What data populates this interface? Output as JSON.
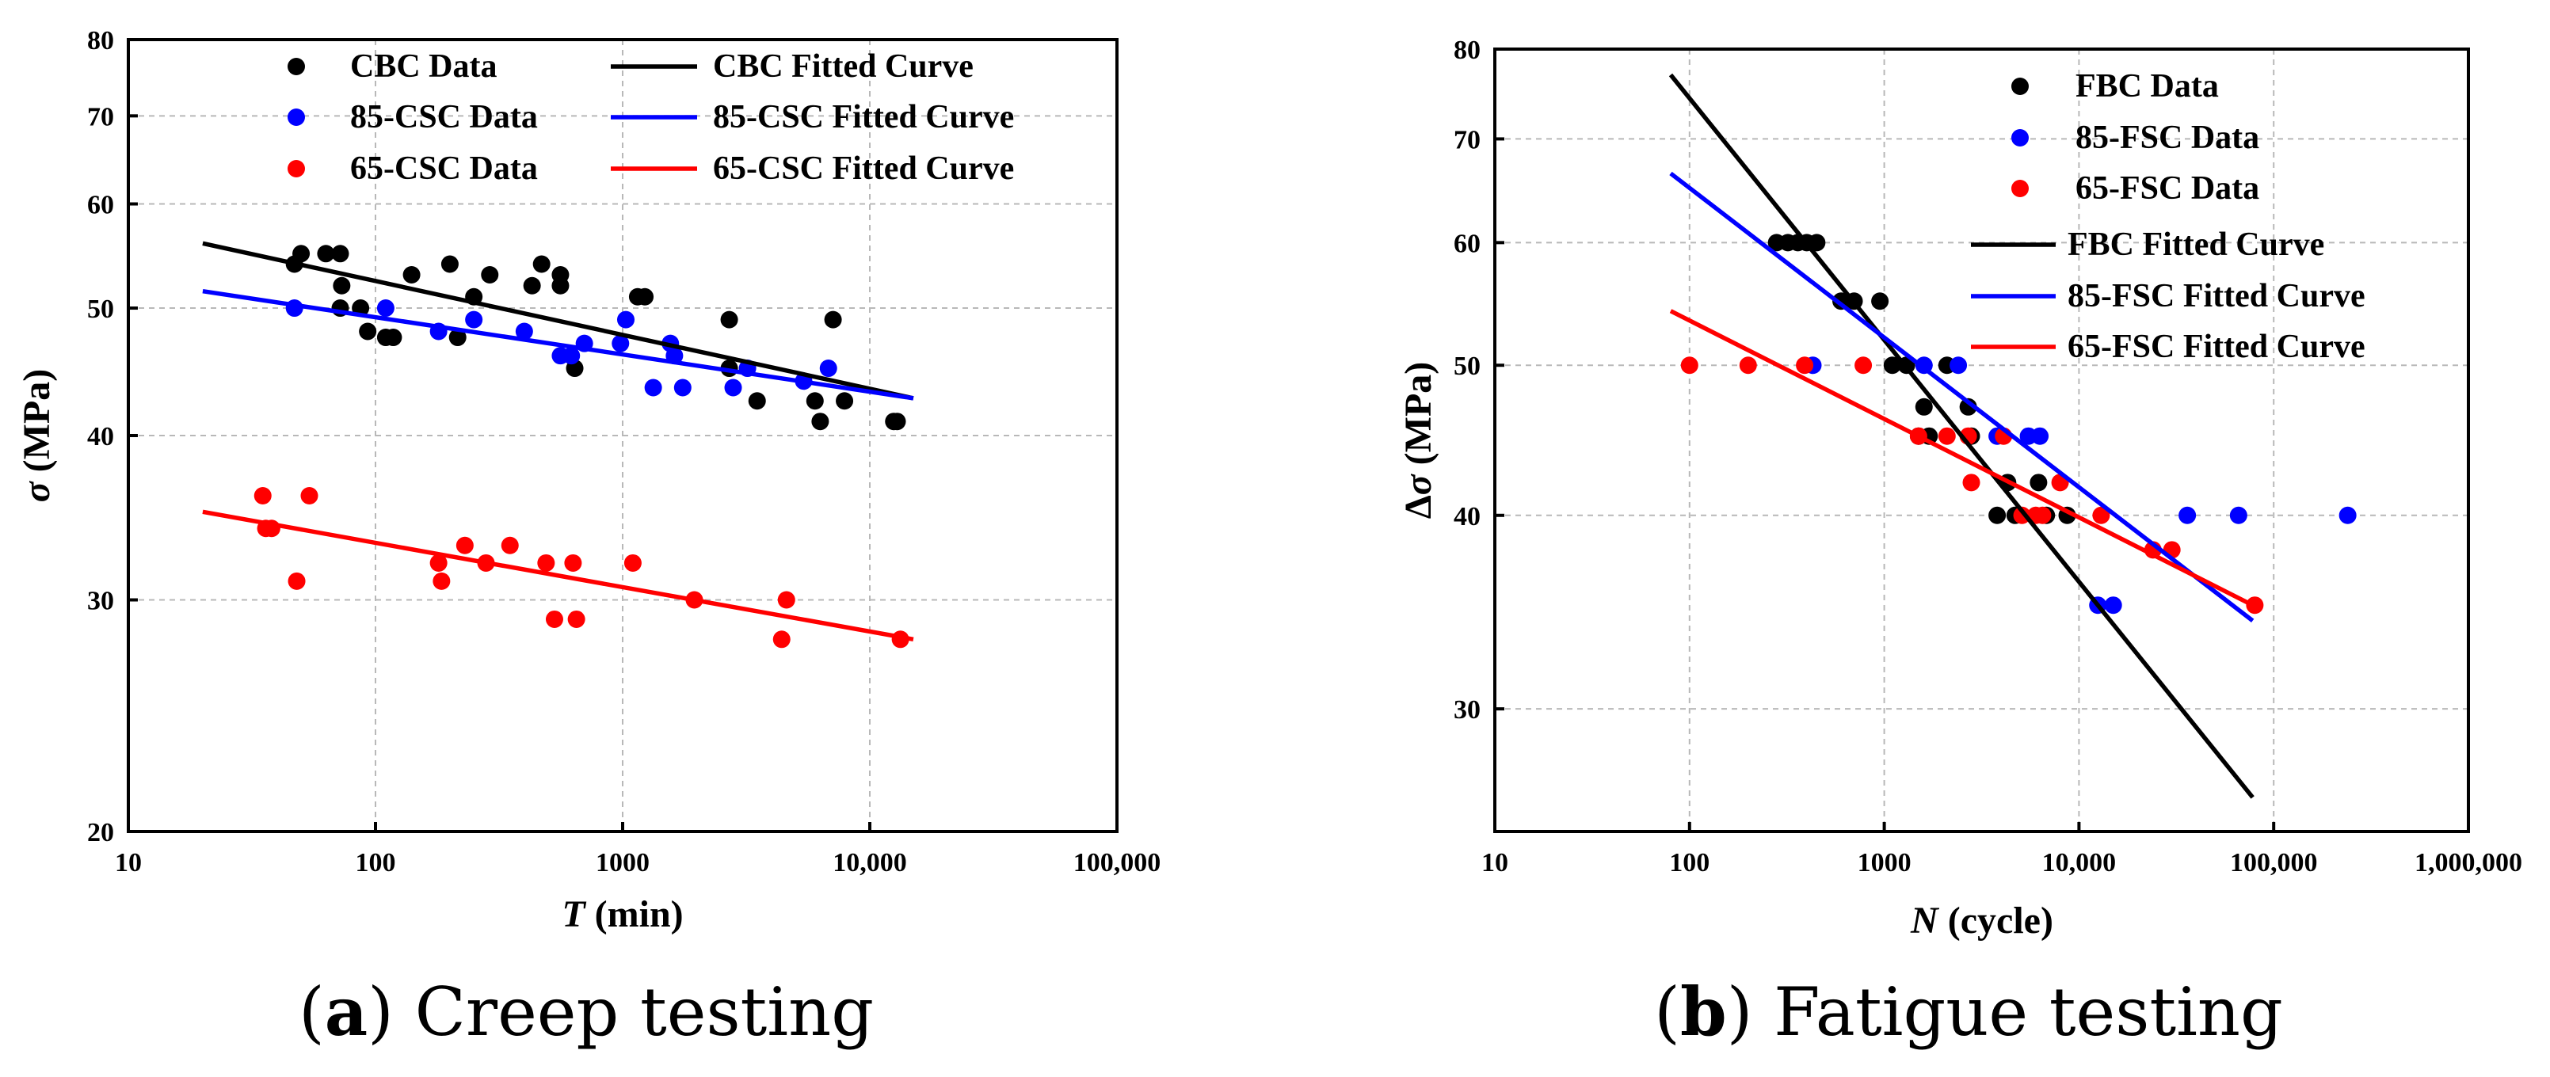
{
  "chart_data": [
    {
      "type": "scatter",
      "panel_label": "a",
      "caption": "Creep testing",
      "xlabel_italic": "T",
      "xlabel_rest": " (min)",
      "ylabel_italic": "σ",
      "ylabel_rest": " (MPa)",
      "x_scale": "log",
      "y_scale": "log",
      "xlim": [
        10,
        100000
      ],
      "ylim": [
        20,
        80
      ],
      "xticks": [
        10,
        100,
        1000,
        10000,
        100000
      ],
      "xtick_labels": [
        "10",
        "100",
        "1000",
        "10,000",
        "100,000"
      ],
      "yticks": [
        20,
        30,
        40,
        50,
        60,
        70,
        80
      ],
      "ytick_labels": [
        "20",
        "30",
        "40",
        "50",
        "60",
        "70",
        "80"
      ],
      "grid": true,
      "legend": [
        {
          "label": "CBC Data",
          "kind": "marker",
          "color": "#000000"
        },
        {
          "label": "85-CSC Data",
          "kind": "marker",
          "color": "#0000ff"
        },
        {
          "label": "65-CSC Data",
          "kind": "marker",
          "color": "#ff0000"
        },
        {
          "label": "CBC Fitted Curve",
          "kind": "line",
          "color": "#000000"
        },
        {
          "label": "85-CSC Fitted Curve",
          "kind": "line",
          "color": "#0000ff"
        },
        {
          "label": "65-CSC Fitted Curve",
          "kind": "line",
          "color": "#ff0000"
        }
      ],
      "series": [
        {
          "name": "CBC Data",
          "color": "#000000",
          "points": [
            [
              47,
              54
            ],
            [
              50,
              55
            ],
            [
              63,
              55
            ],
            [
              72,
              55
            ],
            [
              73,
              52
            ],
            [
              72,
              50
            ],
            [
              87,
              50
            ],
            [
              93,
              48
            ],
            [
              110,
              47.5
            ],
            [
              118,
              47.5
            ],
            [
              140,
              53
            ],
            [
              200,
              54
            ],
            [
              215,
              47.5
            ],
            [
              250,
              51
            ],
            [
              290,
              53
            ],
            [
              430,
              52
            ],
            [
              470,
              54
            ],
            [
              560,
              53
            ],
            [
              560,
              52
            ],
            [
              640,
              45
            ],
            [
              1150,
              51
            ],
            [
              1230,
              51
            ],
            [
              2700,
              49
            ],
            [
              2700,
              45
            ],
            [
              3500,
              42.5
            ],
            [
              6000,
              42.5
            ],
            [
              6300,
              41
            ],
            [
              7100,
              49
            ],
            [
              7900,
              42.5
            ],
            [
              12500,
              41
            ],
            [
              12900,
              41
            ]
          ]
        },
        {
          "name": "85-CSC Data",
          "color": "#0000ff",
          "points": [
            [
              47,
              50
            ],
            [
              110,
              50
            ],
            [
              180,
              48
            ],
            [
              250,
              49
            ],
            [
              400,
              48
            ],
            [
              560,
              46
            ],
            [
              620,
              46
            ],
            [
              700,
              47
            ],
            [
              980,
              47
            ],
            [
              1030,
              49
            ],
            [
              1330,
              43.5
            ],
            [
              1560,
              47
            ],
            [
              1620,
              46
            ],
            [
              1750,
              43.5
            ],
            [
              2800,
              43.5
            ],
            [
              3200,
              45
            ],
            [
              5400,
              44
            ],
            [
              6800,
              45
            ]
          ]
        },
        {
          "name": "65-CSC Data",
          "color": "#ff0000",
          "points": [
            [
              35,
              36
            ],
            [
              36,
              34
            ],
            [
              38,
              34
            ],
            [
              48,
              31
            ],
            [
              54,
              36
            ],
            [
              180,
              32
            ],
            [
              185,
              31
            ],
            [
              230,
              33
            ],
            [
              280,
              32
            ],
            [
              350,
              33
            ],
            [
              490,
              32
            ],
            [
              530,
              29
            ],
            [
              630,
              32
            ],
            [
              650,
              29
            ],
            [
              1100,
              32
            ],
            [
              1950,
              30
            ],
            [
              4400,
              28
            ],
            [
              4600,
              30
            ],
            [
              13300,
              28
            ]
          ]
        }
      ],
      "fitted_curves": [
        {
          "name": "CBC Fitted Curve",
          "color": "#000000",
          "from": [
            20,
            56
          ],
          "to": [
            15000,
            42.7
          ]
        },
        {
          "name": "85-CSC Fitted Curve",
          "color": "#0000ff",
          "from": [
            20,
            51.5
          ],
          "to": [
            15000,
            42.7
          ]
        },
        {
          "name": "65-CSC Fitted Curve",
          "color": "#ff0000",
          "from": [
            20,
            35
          ],
          "to": [
            15000,
            28
          ]
        }
      ]
    },
    {
      "type": "scatter",
      "panel_label": "b",
      "caption": "Fatigue testing",
      "xlabel_italic": "N",
      "xlabel_rest": " (cycle)",
      "ylabel_prefix": "Δ",
      "ylabel_italic": "σ",
      "ylabel_rest": " (MPa)",
      "x_scale": "log",
      "y_scale": "log",
      "xlim": [
        10,
        1000000
      ],
      "ylim": [
        25,
        80
      ],
      "xticks": [
        10,
        100,
        1000,
        10000,
        100000,
        1000000
      ],
      "xtick_labels": [
        "10",
        "100",
        "1000",
        "10,000",
        "100,000",
        "1,000,000"
      ],
      "yticks": [
        30,
        40,
        50,
        60,
        70,
        80
      ],
      "ytick_labels": [
        "30",
        "40",
        "50",
        "60",
        "70",
        "80"
      ],
      "grid": true,
      "legend": [
        {
          "label": "FBC Data",
          "kind": "marker",
          "color": "#000000"
        },
        {
          "label": "85-FSC Data",
          "kind": "marker",
          "color": "#0000ff"
        },
        {
          "label": "65-FSC Data",
          "kind": "marker",
          "color": "#ff0000"
        },
        {
          "label": "FBC Fitted Curve",
          "kind": "line",
          "color": "#000000"
        },
        {
          "label": "85-FSC Fitted Curve",
          "kind": "line",
          "color": "#0000ff"
        },
        {
          "label": "65-FSC Fitted Curve",
          "kind": "line",
          "color": "#ff0000"
        }
      ],
      "series": [
        {
          "name": "FBC Data",
          "color": "#000000",
          "points": [
            [
              280,
              60
            ],
            [
              320,
              60
            ],
            [
              360,
              60
            ],
            [
              400,
              60
            ],
            [
              450,
              60
            ],
            [
              600,
              55
            ],
            [
              700,
              55
            ],
            [
              950,
              55
            ],
            [
              1100,
              50
            ],
            [
              1300,
              50
            ],
            [
              1500,
              45
            ],
            [
              1600,
              47
            ],
            [
              1700,
              45
            ],
            [
              2100,
              50
            ],
            [
              2700,
              47
            ],
            [
              2800,
              45
            ],
            [
              3800,
              40
            ],
            [
              4300,
              42
            ],
            [
              4700,
              40
            ],
            [
              6200,
              42
            ],
            [
              6800,
              40
            ],
            [
              8700,
              40
            ]
          ]
        },
        {
          "name": "85-FSC Data",
          "color": "#0000ff",
          "points": [
            [
              430,
              50
            ],
            [
              1600,
              50
            ],
            [
              2400,
              50
            ],
            [
              3800,
              45
            ],
            [
              5500,
              45
            ],
            [
              6300,
              45
            ],
            [
              12500,
              35
            ],
            [
              15000,
              35
            ],
            [
              36000,
              40
            ],
            [
              66000,
              40
            ],
            [
              240000,
              40
            ]
          ]
        },
        {
          "name": "65-FSC Data",
          "color": "#ff0000",
          "points": [
            [
              100,
              50
            ],
            [
              200,
              50
            ],
            [
              390,
              50
            ],
            [
              780,
              50
            ],
            [
              1500,
              45
            ],
            [
              2100,
              45
            ],
            [
              2700,
              45
            ],
            [
              2800,
              42
            ],
            [
              4100,
              45
            ],
            [
              5100,
              40
            ],
            [
              6000,
              40
            ],
            [
              6500,
              40
            ],
            [
              8000,
              42
            ],
            [
              13000,
              40
            ],
            [
              24000,
              38
            ],
            [
              30000,
              38
            ],
            [
              80000,
              35
            ]
          ]
        }
      ],
      "fitted_curves": [
        {
          "name": "FBC Fitted Curve",
          "color": "#000000",
          "from": [
            80,
            77
          ],
          "to": [
            78000,
            26.3
          ]
        },
        {
          "name": "85-FSC Fitted Curve",
          "color": "#0000ff",
          "from": [
            80,
            66.5
          ],
          "to": [
            78000,
            34.2
          ]
        },
        {
          "name": "65-FSC Fitted Curve",
          "color": "#ff0000",
          "from": [
            80,
            54.2
          ],
          "to": [
            78000,
            35
          ]
        }
      ]
    }
  ]
}
